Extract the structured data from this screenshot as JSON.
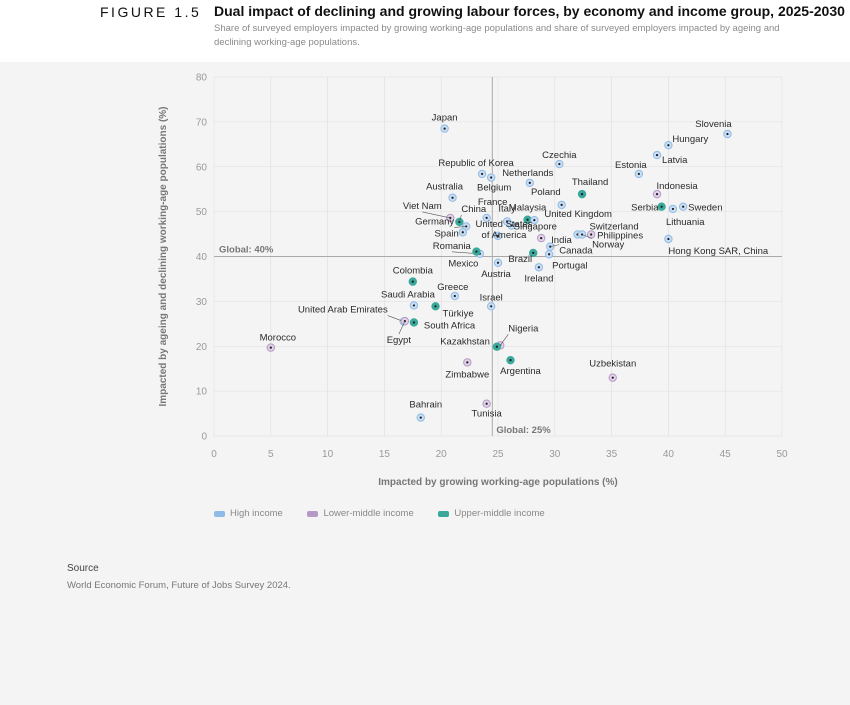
{
  "header": {
    "figure_label": "FIGURE 1.5",
    "title": "Dual impact of declining and growing labour forces, by economy and income group, 2025-2030",
    "subtitle": "Share of surveyed employers impacted by growing working-age populations and share of surveyed employers impacted by ageing and declining working-age populations."
  },
  "colors": {
    "high": "#8fbbe6",
    "lower_middle": "#b598c6",
    "upper_middle": "#3aa89a",
    "high_fill": "#c9ddf3",
    "lower_middle_fill": "#e1d2e8",
    "upper_middle_fill": "#3aa89a"
  },
  "source": {
    "label": "Source",
    "text": "World Economic Forum, Future of Jobs Survey 2024."
  },
  "chart_data": {
    "type": "scatter",
    "title": "Dual impact of declining and growing labour forces, by economy and income group, 2025-2030",
    "xlabel": "Impacted by growing working-age populations (%)",
    "ylabel": "Impacted by ageing and declining working-age populations (%)",
    "xlim": [
      0,
      50
    ],
    "ylim": [
      0,
      80
    ],
    "xticks": [
      0,
      5,
      10,
      15,
      20,
      25,
      30,
      35,
      40,
      45,
      50
    ],
    "yticks": [
      0,
      10,
      20,
      30,
      40,
      50,
      60,
      70,
      80
    ],
    "reference_lines": [
      {
        "axis": "y",
        "value": 40,
        "label": "Global: 40%"
      },
      {
        "axis": "x",
        "value": 24.5,
        "label": "Global: 25%"
      }
    ],
    "legend": [
      {
        "key": "high",
        "label": "High income"
      },
      {
        "key": "lower_middle",
        "label": "Lower-middle income"
      },
      {
        "key": "upper_middle",
        "label": "Upper-middle income"
      }
    ],
    "points": [
      {
        "name": "Japan",
        "x": 20.3,
        "y": 68.5,
        "group": "high"
      },
      {
        "name": "Slovenia",
        "x": 45.2,
        "y": 67.3,
        "group": "high"
      },
      {
        "name": "Hungary",
        "x": 40.0,
        "y": 64.8,
        "group": "high"
      },
      {
        "name": "Latvia",
        "x": 39.0,
        "y": 62.6,
        "group": "high"
      },
      {
        "name": "Czechia",
        "x": 30.4,
        "y": 60.6,
        "group": "high"
      },
      {
        "name": "Estonia",
        "x": 37.4,
        "y": 58.4,
        "group": "high"
      },
      {
        "name": "Republic of Korea",
        "x": 23.6,
        "y": 58.4,
        "group": "high"
      },
      {
        "name": "Belgium",
        "x": 24.4,
        "y": 57.6,
        "group": "high"
      },
      {
        "name": "Netherlands",
        "x": 27.8,
        "y": 56.4,
        "group": "high"
      },
      {
        "name": "Thailand",
        "x": 32.4,
        "y": 53.9,
        "group": "upper_middle"
      },
      {
        "name": "Indonesia",
        "x": 39.0,
        "y": 53.9,
        "group": "lower_middle"
      },
      {
        "name": "Australia",
        "x": 21.0,
        "y": 53.1,
        "group": "high"
      },
      {
        "name": "Poland",
        "x": 30.6,
        "y": 51.5,
        "group": "high"
      },
      {
        "name": "Serbia",
        "x": 39.4,
        "y": 51.1,
        "group": "upper_middle"
      },
      {
        "name": "Sweden",
        "x": 41.3,
        "y": 51.1,
        "group": "high"
      },
      {
        "name": "Lithuania",
        "x": 40.4,
        "y": 50.6,
        "group": "high"
      },
      {
        "name": "France",
        "x": 24.0,
        "y": 48.6,
        "group": "high"
      },
      {
        "name": "Viet Nam",
        "x": 20.8,
        "y": 48.6,
        "group": "lower_middle"
      },
      {
        "name": "China",
        "x": 21.6,
        "y": 47.7,
        "group": "upper_middle"
      },
      {
        "name": "Malaysia",
        "x": 27.6,
        "y": 48.2,
        "group": "upper_middle"
      },
      {
        "name": "Italy",
        "x": 25.8,
        "y": 47.8,
        "group": "high"
      },
      {
        "name": "United Kingdom",
        "x": 28.2,
        "y": 48.1,
        "group": "high"
      },
      {
        "name": "Singapore",
        "x": 26.2,
        "y": 46.9,
        "group": "high"
      },
      {
        "name": "Germany",
        "x": 22.2,
        "y": 46.7,
        "group": "high"
      },
      {
        "name": "Switzerland",
        "x": 32.0,
        "y": 44.9,
        "group": "high"
      },
      {
        "name": "Spain",
        "x": 21.9,
        "y": 45.4,
        "group": "high"
      },
      {
        "name": "Philippines",
        "x": 33.2,
        "y": 44.9,
        "group": "lower_middle"
      },
      {
        "name": "Norway",
        "x": 32.4,
        "y": 44.9,
        "group": "high"
      },
      {
        "name": "United States of America",
        "x": 25.0,
        "y": 44.6,
        "group": "high"
      },
      {
        "name": "India",
        "x": 28.8,
        "y": 44.1,
        "group": "lower_middle"
      },
      {
        "name": "Hong Kong SAR, China",
        "x": 40.0,
        "y": 43.9,
        "group": "high"
      },
      {
        "name": "Canada",
        "x": 29.6,
        "y": 42.2,
        "group": "high"
      },
      {
        "name": "Romania",
        "x": 23.4,
        "y": 40.6,
        "group": "high"
      },
      {
        "name": "Brazil",
        "x": 28.1,
        "y": 40.8,
        "group": "upper_middle"
      },
      {
        "name": "Portugal",
        "x": 29.5,
        "y": 40.5,
        "group": "high"
      },
      {
        "name": "Mexico",
        "x": 23.1,
        "y": 41.1,
        "group": "upper_middle"
      },
      {
        "name": "Austria",
        "x": 25.0,
        "y": 38.6,
        "group": "high"
      },
      {
        "name": "Ireland",
        "x": 28.6,
        "y": 37.6,
        "group": "high"
      },
      {
        "name": "Colombia",
        "x": 17.5,
        "y": 34.4,
        "group": "upper_middle"
      },
      {
        "name": "Greece",
        "x": 21.2,
        "y": 31.2,
        "group": "high"
      },
      {
        "name": "Saudi Arabia",
        "x": 17.6,
        "y": 29.1,
        "group": "high"
      },
      {
        "name": "Türkiye",
        "x": 19.5,
        "y": 28.9,
        "group": "upper_middle"
      },
      {
        "name": "Israel",
        "x": 24.4,
        "y": 28.9,
        "group": "high"
      },
      {
        "name": "United Arab Emirates",
        "x": 16.7,
        "y": 25.5,
        "group": "high"
      },
      {
        "name": "Egypt",
        "x": 16.8,
        "y": 25.6,
        "group": "lower_middle"
      },
      {
        "name": "South Africa",
        "x": 17.6,
        "y": 25.3,
        "group": "upper_middle"
      },
      {
        "name": "Nigeria",
        "x": 25.2,
        "y": 20.2,
        "group": "lower_middle"
      },
      {
        "name": "Kazakhstan",
        "x": 24.9,
        "y": 19.9,
        "group": "upper_middle"
      },
      {
        "name": "Morocco",
        "x": 5.0,
        "y": 19.7,
        "group": "lower_middle"
      },
      {
        "name": "Zimbabwe",
        "x": 22.3,
        "y": 16.4,
        "group": "lower_middle"
      },
      {
        "name": "Argentina",
        "x": 26.1,
        "y": 16.9,
        "group": "upper_middle"
      },
      {
        "name": "Uzbekistan",
        "x": 35.1,
        "y": 13.0,
        "group": "lower_middle"
      },
      {
        "name": "Tunisia",
        "x": 24.0,
        "y": 7.2,
        "group": "lower_middle"
      },
      {
        "name": "Bahrain",
        "x": 18.2,
        "y": 4.1,
        "group": "high"
      }
    ]
  }
}
